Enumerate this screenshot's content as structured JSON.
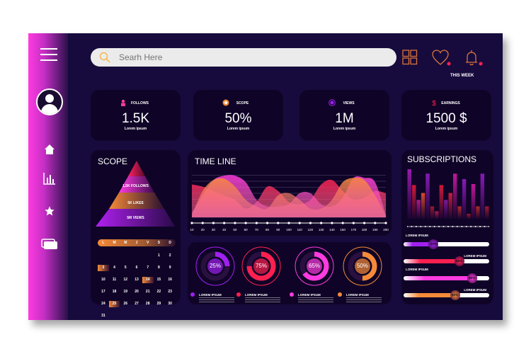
{
  "search": {
    "placeholder": "Searh Here"
  },
  "header": {
    "this_week": "THIS WEEK"
  },
  "colors": {
    "accent_orange": "#f58a38",
    "accent_magenta": "#ff3be0",
    "accent_red": "#ff2050",
    "accent_purple": "#a020f0",
    "background": "#170b3d",
    "panel": "#0f0427"
  },
  "stats": [
    {
      "label": "FOLLOWS",
      "value": "1.5K",
      "sub": "Lorem ipsum",
      "icon": "user-icon",
      "color": "#ff3b9a"
    },
    {
      "label": "SCOPE",
      "value": "50%",
      "sub": "Lorem ipsum",
      "icon": "target-icon",
      "color": "#f58a38"
    },
    {
      "label": "VIEWS",
      "value": "1M",
      "sub": "Lorem ipsum",
      "icon": "eye-icon",
      "color": "#a020f0"
    },
    {
      "label": "EARNINGS",
      "value": "1500 $",
      "sub": "Lorem ipsum",
      "icon": "dollar-icon",
      "color": "#ff2050"
    }
  ],
  "scope": {
    "title": "SCOPE",
    "pyramid": [
      "1,5K FOLLOWS",
      "5K LIKES",
      "5M VIEWS"
    ],
    "calendar": {
      "days": [
        "L",
        "M",
        "M",
        "J",
        "V",
        "S",
        "D"
      ],
      "cells": [
        "",
        "",
        "",
        "",
        "",
        "1",
        "2",
        "3",
        "4",
        "5",
        "6",
        "7",
        "8",
        "9",
        "10",
        "11",
        "12",
        "13",
        "14",
        "15",
        "16",
        "17",
        "18",
        "19",
        "20",
        "21",
        "22",
        "23",
        "24",
        "25",
        "26",
        "27",
        "28",
        "29",
        "30",
        "31"
      ],
      "highlighted": [
        "3",
        "14",
        "25"
      ]
    }
  },
  "timeline": {
    "title": "TIME LINE",
    "chart_data": {
      "type": "area",
      "x": [
        "10",
        "20",
        "30",
        "40",
        "50",
        "60",
        "70",
        "80",
        "90",
        "100",
        "110",
        "120",
        "130",
        "140",
        "150",
        "170",
        "180",
        "190",
        "200"
      ],
      "series": [
        {
          "color": "#ff2050",
          "values": [
            75,
            70,
            60,
            50,
            40,
            20,
            35,
            70,
            60,
            35,
            30,
            40,
            75,
            85,
            60,
            40,
            45,
            60,
            55
          ]
        },
        {
          "color": "#ff3be0",
          "values": [
            10,
            50,
            85,
            95,
            95,
            80,
            40,
            25,
            25,
            30,
            55,
            55,
            30,
            25,
            45,
            90,
            90,
            80,
            5
          ]
        },
        {
          "color": "#f58a38",
          "values": [
            5,
            60,
            85,
            88,
            70,
            40,
            25,
            20,
            50,
            55,
            40,
            20,
            20,
            40,
            80,
            90,
            85,
            50,
            5
          ]
        }
      ]
    }
  },
  "donuts": [
    {
      "value": 25,
      "label": "25%",
      "legend": "LOREM IPSUM",
      "color": "#a020f0"
    },
    {
      "value": 75,
      "label": "75%",
      "legend": "LOREM IPSUM",
      "color": "#ff2050"
    },
    {
      "value": 65,
      "label": "65%",
      "legend": "LOREM IPSUM",
      "color": "#ff3be0"
    },
    {
      "value": 50,
      "label": "50%",
      "legend": "LOREM IPSUM",
      "color": "#f58a38"
    }
  ],
  "subscriptions": {
    "title": "SUBSCRIPTIONS",
    "bars": [
      100,
      68,
      38,
      52,
      91,
      25,
      15,
      68,
      38,
      52,
      91,
      25,
      80,
      10,
      70,
      25,
      91,
      25
    ],
    "bar_colors": [
      "#9a1ab0",
      "#d01a3a",
      "#b0188a",
      "#d84a2a",
      "#8a1ab8",
      "#a01830",
      "#b01850",
      "#d01a3a",
      "#7a1a9a",
      "#d01a3a",
      "#c0189a",
      "#b02a2a",
      "#8a1ab8",
      "#a01830",
      "#c0189a",
      "#b02a2a",
      "#8a1ab8",
      "#a01830"
    ],
    "sliders": [
      {
        "label": "LOREM IPSUM",
        "value": 35,
        "text": "35%",
        "color": "#a020f0"
      },
      {
        "label": "LOREM IPSUM",
        "value": 65,
        "text": "65%",
        "color": "#ff2050"
      },
      {
        "label": "LOREM IPSUM",
        "value": 80,
        "text": "80%",
        "color": "#ff3be0"
      },
      {
        "label": "LOREM IPSUM",
        "value": 60,
        "text": "60%",
        "color": "#f58a38"
      }
    ]
  }
}
